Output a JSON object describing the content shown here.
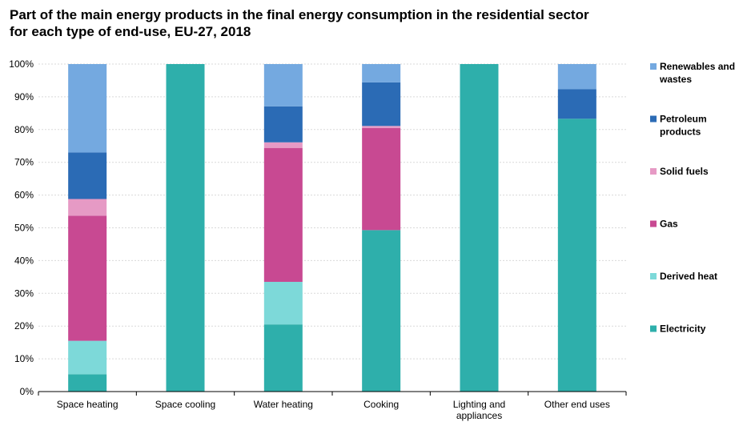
{
  "chart_data": {
    "type": "bar",
    "stacked": true,
    "title": "Part of the main energy products in the final energy consumption in the residential sector for each type of end-use, EU-27, 2018",
    "categories": [
      "Space heating",
      "Space cooling",
      "Water heating",
      "Cooking",
      "Lighting and appliances",
      "Other end uses"
    ],
    "category_lines": [
      [
        "Space heating"
      ],
      [
        "Space cooling"
      ],
      [
        "Water heating"
      ],
      [
        "Cooking"
      ],
      [
        "Lighting and",
        "appliances"
      ],
      [
        "Other end uses"
      ]
    ],
    "y_ticks": [
      "0%",
      "10%",
      "20%",
      "30%",
      "40%",
      "50%",
      "60%",
      "70%",
      "80%",
      "90%",
      "100%"
    ],
    "ylim": [
      0,
      100
    ],
    "grid": true,
    "legend_position": "right",
    "series": [
      {
        "name": "Electricity",
        "color": "#2EAFAB",
        "values": [
          5.3,
          100,
          20.5,
          49.3,
          100,
          83.3
        ]
      },
      {
        "name": "Derived heat",
        "color": "#7DD9D9",
        "values": [
          10.2,
          0,
          13.0,
          0,
          0,
          0
        ]
      },
      {
        "name": "Gas",
        "color": "#C84992",
        "values": [
          38.2,
          0,
          40.9,
          31.2,
          0,
          0
        ]
      },
      {
        "name": "Solid fuels",
        "color": "#E69AC5",
        "values": [
          5.1,
          0,
          1.7,
          0.6,
          0,
          0
        ]
      },
      {
        "name": "Petroleum products",
        "color": "#2B6BB5",
        "values": [
          14.2,
          0,
          11.0,
          13.3,
          0,
          9.0
        ]
      },
      {
        "name": "Renewables and wastes",
        "color": "#74A9E0",
        "values": [
          27.0,
          0,
          12.9,
          5.6,
          0,
          7.7
        ]
      }
    ],
    "legend": [
      {
        "series": "Renewables and wastes",
        "lines": [
          "Renewables and",
          "wastes"
        ]
      },
      {
        "series": "Petroleum products",
        "lines": [
          "Petroleum",
          "products"
        ]
      },
      {
        "series": "Solid fuels",
        "lines": [
          "Solid fuels"
        ]
      },
      {
        "series": "Gas",
        "lines": [
          "Gas"
        ]
      },
      {
        "series": "Derived heat",
        "lines": [
          "Derived heat"
        ]
      },
      {
        "series": "Electricity",
        "lines": [
          "Electricity"
        ]
      }
    ]
  }
}
